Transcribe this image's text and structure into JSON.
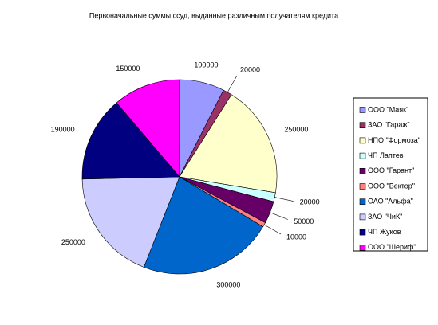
{
  "chart_data": {
    "type": "pie",
    "title": "Первоначальные суммы ссуд, выданные различным получателям кредита",
    "categories": [
      "ООО \"Маяк\"",
      "ЗАО \"Гараж\"",
      "НПО \"Формоза\"",
      "ЧП Лаптев",
      "ООО \"Гарант\"",
      "ООО \"Вектор\"",
      "ОАО \"Альфа\"",
      "ЗАО \"ЧиК\"",
      "ЧП Жуков",
      "ООО \"Шериф\""
    ],
    "values": [
      100000,
      20000,
      250000,
      20000,
      50000,
      10000,
      300000,
      250000,
      190000,
      150000
    ],
    "colors": [
      "#9999ff",
      "#993366",
      "#ffffcc",
      "#ccffff",
      "#660066",
      "#ff8080",
      "#0066cc",
      "#ccccff",
      "#000080",
      "#ff00ff"
    ],
    "legend": "right"
  }
}
